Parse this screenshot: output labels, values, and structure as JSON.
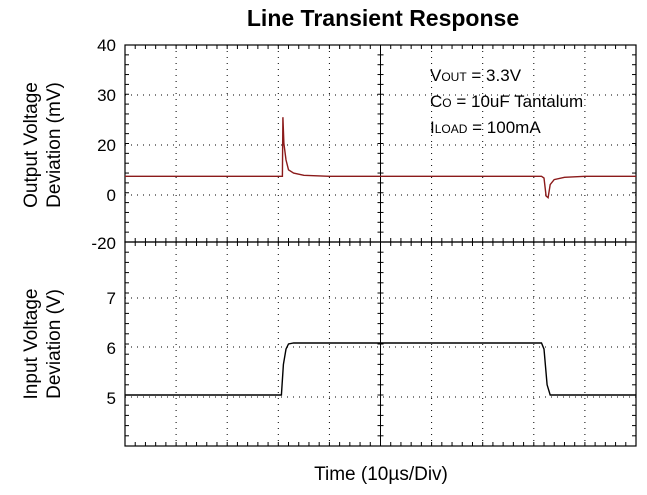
{
  "chart_data": {
    "type": "line",
    "title": "Line Transient Response",
    "xlabel": "Time (10µs/Div)",
    "grid": true,
    "panels": [
      {
        "ylabel_line1": "Output Voltage",
        "ylabel_line2": "Deviation (mV)",
        "ylim": [
          -20,
          40
        ],
        "yticks": [
          "40",
          "30",
          "20",
          "0",
          "-20"
        ],
        "xlim": [
          0,
          100
        ],
        "series": [
          {
            "color": "#8b1a1a",
            "x": [
              0,
              30.8,
              30.9,
              31.1,
              31.5,
              32,
              33,
              35,
              40,
              60,
              81.5,
              82,
              82.4,
              82.8,
              83.2,
              84,
              86,
              90,
              100
            ],
            "y": [
              0,
              0,
              18,
              10,
              5,
              2,
              1,
              0.3,
              0,
              0,
              0,
              -0.5,
              -6,
              -6.5,
              -2.5,
              -1,
              -0.3,
              0,
              0
            ]
          }
        ],
        "annotations": [
          {
            "main": "V",
            "sub": "OUT",
            "rest": " = 3.3V"
          },
          {
            "main": "C",
            "sub": "O",
            "rest": " = 10uF Tantalum"
          },
          {
            "main": "I",
            "sub": "LOAD",
            "rest": " = 100mA"
          }
        ]
      },
      {
        "ylabel_line1": "Input Voltage",
        "ylabel_line2": "Deviation (V)",
        "ylim": [
          4,
          8
        ],
        "yticks": [
          "7",
          "6",
          "5"
        ],
        "xlim": [
          0,
          100
        ],
        "series": [
          {
            "color": "#000000",
            "x": [
              0,
              30.6,
              31,
              31.5,
              32,
              33,
              35,
              81.5,
              82,
              82.6,
              83.2,
              100
            ],
            "y": [
              5,
              5,
              5.6,
              5.9,
              6,
              6.02,
              6.02,
              6.02,
              5.9,
              5.2,
              5,
              5
            ]
          }
        ]
      }
    ]
  }
}
